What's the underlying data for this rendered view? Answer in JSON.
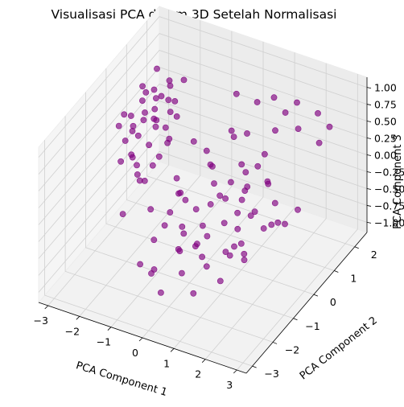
{
  "chart_data": {
    "type": "scatter",
    "projection": "3d",
    "title": "Visualisasi PCA dalam 3D Setelah Normalisasi",
    "xlabel": "PCA Component 1",
    "ylabel": "PCA Component 2",
    "zlabel": "PCA Component 3",
    "xlim": [
      -3.3,
      3.3
    ],
    "ylim": [
      -3.3,
      2.6
    ],
    "zlim": [
      -1.15,
      1.15
    ],
    "grid": true,
    "marker_color": "#800080",
    "x_ticks": [
      "−3",
      "−2",
      "−1",
      "0",
      "1",
      "2",
      "3"
    ],
    "y_ticks": [
      "−3",
      "−2",
      "−1",
      "0",
      "1",
      "2"
    ],
    "z_ticks": [
      "−1.00",
      "−0.75",
      "−0.50",
      "−0.25",
      "0.00",
      "0.25",
      "0.50",
      "0.75",
      "1.00"
    ],
    "points": [
      [
        -2.3,
        0.9,
        0.55
      ],
      [
        -2.1,
        1.2,
        0.45
      ],
      [
        -2.5,
        0.6,
        0.3
      ],
      [
        -2.2,
        0.2,
        0.6
      ],
      [
        -2.6,
        1.3,
        0.2
      ],
      [
        -2.0,
        0.7,
        0.7
      ],
      [
        -2.4,
        -0.1,
        0.4
      ],
      [
        -2.7,
        0.4,
        0.25
      ],
      [
        -2.3,
        1.6,
        0.1
      ],
      [
        -1.9,
        0.3,
        0.5
      ],
      [
        -2.2,
        -0.4,
        0.15
      ],
      [
        -2.8,
        0.8,
        -0.05
      ],
      [
        -2.5,
        1.9,
        0.35
      ],
      [
        -2.0,
        1.0,
        -0.1
      ],
      [
        -2.6,
        -0.2,
        0.65
      ],
      [
        -2.1,
        0.5,
        0.85
      ],
      [
        -2.4,
        1.1,
        0.9
      ],
      [
        -2.9,
        0.1,
        -0.2
      ],
      [
        -2.2,
        0.9,
        -0.3
      ],
      [
        -1.8,
        0.6,
        0.3
      ],
      [
        -2.3,
        -0.6,
        0.45
      ],
      [
        -2.7,
        1.5,
        -0.15
      ],
      [
        -2.0,
        1.8,
        0.55
      ],
      [
        -2.5,
        0.3,
        -0.4
      ],
      [
        -2.1,
        -0.2,
        -0.25
      ],
      [
        -2.6,
        0.7,
        0.75
      ],
      [
        -1.9,
        1.3,
        0.2
      ],
      [
        -2.4,
        0.5,
        -0.55
      ],
      [
        -2.8,
        1.0,
        0.4
      ],
      [
        -2.2,
        1.4,
        0.65
      ],
      [
        -2.0,
        -0.5,
        0.1
      ],
      [
        -2.5,
        0.0,
        0.0
      ],
      [
        -2.3,
        0.8,
        0.28
      ],
      [
        -2.7,
        -0.3,
        0.5
      ],
      [
        -1.7,
        0.9,
        0.6
      ],
      [
        -2.4,
        1.7,
        -0.35
      ],
      [
        -2.1,
        0.1,
        0.95
      ],
      [
        -2.6,
        1.2,
        -0.6
      ],
      [
        -2.2,
        0.4,
        0.05
      ],
      [
        -2.9,
        0.6,
        0.3
      ],
      [
        -1.2,
        0.4,
        -0.5
      ],
      [
        -0.8,
        -0.3,
        -0.2
      ],
      [
        -0.5,
        0.8,
        -0.7
      ],
      [
        -0.3,
        -0.9,
        -0.4
      ],
      [
        0.0,
        0.2,
        -0.1
      ],
      [
        0.3,
        -0.6,
        -0.55
      ],
      [
        0.6,
        0.9,
        -0.3
      ],
      [
        0.9,
        -0.2,
        -0.75
      ],
      [
        1.1,
        0.5,
        -0.45
      ],
      [
        1.4,
        -0.8,
        -0.2
      ],
      [
        -1.0,
        -1.2,
        -0.6
      ],
      [
        -0.7,
        1.1,
        -0.25
      ],
      [
        -0.2,
        -0.4,
        -0.85
      ],
      [
        0.2,
        1.4,
        -0.6
      ],
      [
        0.5,
        -1.4,
        -0.35
      ],
      [
        0.8,
        0.3,
        -0.9
      ],
      [
        1.2,
        -0.5,
        -0.1
      ],
      [
        1.5,
        0.7,
        -0.65
      ],
      [
        1.8,
        -1.1,
        -0.4
      ],
      [
        -0.9,
        0.1,
        -0.95
      ],
      [
        -0.4,
        -1.6,
        -0.15
      ],
      [
        0.1,
        0.6,
        -0.45
      ],
      [
        0.4,
        -1.0,
        -0.7
      ],
      [
        0.7,
        1.6,
        -0.05
      ],
      [
        1.0,
        -1.7,
        -0.5
      ],
      [
        1.3,
        0.0,
        -0.3
      ],
      [
        1.6,
        1.2,
        -0.8
      ],
      [
        -1.1,
        0.9,
        0.1
      ],
      [
        -0.6,
        -0.7,
        0.2
      ],
      [
        -0.1,
        1.9,
        -0.55
      ],
      [
        0.3,
        -2.0,
        -0.25
      ],
      [
        0.6,
        0.1,
        0.05
      ],
      [
        0.9,
        -0.9,
        0.25
      ],
      [
        1.2,
        1.0,
        -0.2
      ],
      [
        1.5,
        -1.8,
        -0.6
      ],
      [
        1.9,
        0.4,
        -0.45
      ],
      [
        2.1,
        -0.6,
        -0.15
      ],
      [
        -0.8,
        -1.5,
        -0.9
      ],
      [
        -0.3,
        0.3,
        0.3
      ],
      [
        0.0,
        -1.2,
        0.15
      ],
      [
        0.4,
        1.2,
        0.35
      ],
      [
        0.7,
        -0.1,
        -0.95
      ],
      [
        1.0,
        0.8,
        0.1
      ],
      [
        1.3,
        -1.3,
        0.05
      ],
      [
        1.7,
        0.2,
        0.2
      ],
      [
        2.0,
        -1.4,
        -0.35
      ],
      [
        -1.3,
        -0.9,
        -0.3
      ],
      [
        -0.9,
        1.5,
        -0.45
      ],
      [
        -0.5,
        -2.1,
        -0.7
      ],
      [
        -0.1,
        -0.2,
        -0.6
      ],
      [
        0.2,
        2.0,
        0.5
      ],
      [
        0.5,
        0.4,
        0.6
      ],
      [
        0.8,
        1.9,
        0.7
      ],
      [
        1.1,
        1.5,
        0.4
      ],
      [
        1.4,
        2.1,
        0.65
      ],
      [
        1.7,
        1.7,
        0.45
      ],
      [
        2.0,
        2.2,
        0.55
      ],
      [
        2.3,
        1.8,
        0.3
      ],
      [
        2.5,
        2.0,
        0.5
      ],
      [
        -0.2,
        1.6,
        0.7
      ],
      [
        0.1,
        0.9,
        0.45
      ],
      [
        0.6,
        -1.6,
        0.25
      ],
      [
        0.9,
        2.3,
        0.35
      ],
      [
        1.2,
        -0.3,
        0.55
      ],
      [
        1.6,
        -0.9,
        0.3
      ],
      [
        -1.4,
        0.2,
        -0.75
      ],
      [
        -0.7,
        -0.4,
        -1.0
      ],
      [
        0.0,
        -2.4,
        -0.8
      ],
      [
        0.6,
        -2.3,
        -0.45
      ],
      [
        1.1,
        -2.5,
        -0.6
      ],
      [
        -0.4,
        -2.8,
        -0.3
      ],
      [
        1.8,
        -2.0,
        -0.05
      ],
      [
        2.2,
        -0.2,
        0.1
      ],
      [
        2.4,
        0.6,
        -0.25
      ],
      [
        -1.6,
        -1.8,
        -0.1
      ]
    ]
  }
}
